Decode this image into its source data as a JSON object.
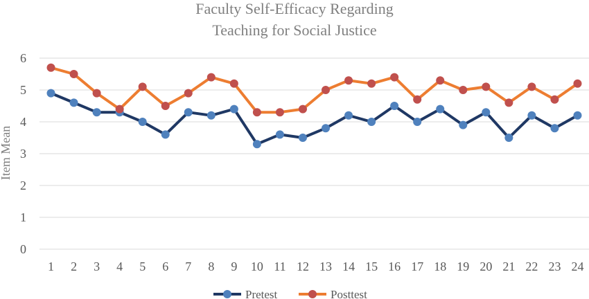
{
  "chart_data": {
    "type": "line",
    "title": "Faculty Self-Efficacy Regarding Teaching for Social Justice",
    "title_lines": [
      "Faculty Self-Efficacy Regarding",
      "Teaching for Social Justice"
    ],
    "xlabel": "",
    "ylabel": "Item Mean",
    "ylim": [
      0,
      6
    ],
    "yticks": [
      "0",
      "1",
      "2",
      "3",
      "4",
      "5",
      "6"
    ],
    "grid": true,
    "legend_position": "bottom-center",
    "categories": [
      "1",
      "2",
      "3",
      "4",
      "5",
      "6",
      "7",
      "8",
      "9",
      "10",
      "11",
      "12",
      "13",
      "14",
      "15",
      "16",
      "17",
      "18",
      "19",
      "20",
      "21",
      "22",
      "23",
      "24"
    ],
    "series": [
      {
        "name": "Pretest",
        "line_color": "#1f3864",
        "marker_color": "#4f81bd",
        "values": [
          4.9,
          4.6,
          4.3,
          4.3,
          4.0,
          3.6,
          4.3,
          4.2,
          4.4,
          3.3,
          3.6,
          3.5,
          3.8,
          4.2,
          4.0,
          4.5,
          4.0,
          4.4,
          3.9,
          4.3,
          3.5,
          4.2,
          3.8,
          4.2
        ]
      },
      {
        "name": "Posttest",
        "line_color": "#ed7d31",
        "marker_color": "#c0504d",
        "values": [
          5.7,
          5.5,
          4.9,
          4.4,
          5.1,
          4.5,
          4.9,
          5.4,
          5.2,
          4.3,
          4.3,
          4.4,
          5.0,
          5.3,
          5.2,
          5.4,
          4.7,
          5.3,
          5.0,
          5.1,
          4.6,
          5.1,
          4.7,
          5.2
        ]
      }
    ]
  }
}
